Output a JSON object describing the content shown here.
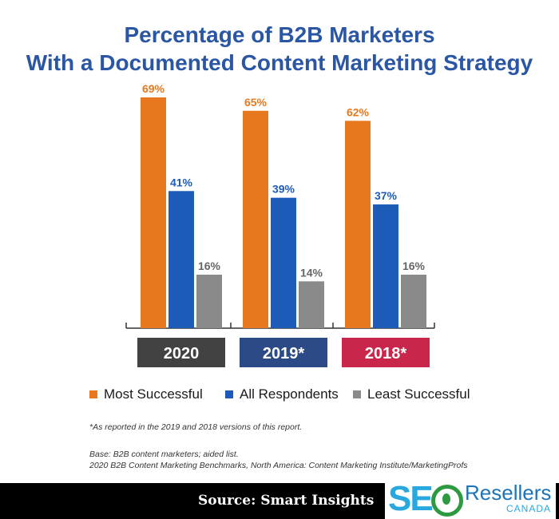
{
  "chart_data": {
    "type": "bar",
    "title": "Percentage of B2B Marketers With a Documented Content Marketing Strategy",
    "title_lines": [
      "Percentage of B2B Marketers",
      "With a Documented Content Marketing Strategy"
    ],
    "categories": [
      "2020",
      "2019*",
      "2018*"
    ],
    "category_colors": [
      "#424242",
      "#2c4a85",
      "#c8264a"
    ],
    "series": [
      {
        "name": "Most Successful",
        "values": [
          69,
          65,
          62
        ],
        "color": "#e8781e"
      },
      {
        "name": "All Respondents",
        "values": [
          41,
          39,
          37
        ],
        "color": "#1d5bb8"
      },
      {
        "name": "Least Successful",
        "values": [
          16,
          14,
          16
        ],
        "color": "#8a8a8a"
      }
    ],
    "value_suffix": "%",
    "ylim": [
      0,
      69
    ],
    "legend_position": "bottom",
    "grid": false
  },
  "notes": {
    "footnote": "*As reported in the 2019 and 2018 versions of this report.",
    "base": "Base: B2B content marketers; aided list.",
    "source_line": "2020 B2B Content Marketing Benchmarks, North America: Content Marketing Institute/MarketingProfs"
  },
  "footer": {
    "source": "Source: Smart Insights",
    "logo_seo": "SE",
    "logo_resellers": "Resellers",
    "logo_canada": "CANADA"
  }
}
